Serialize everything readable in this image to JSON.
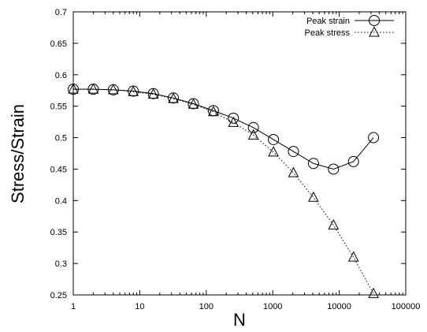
{
  "chart_data": {
    "type": "line",
    "xlabel": "N",
    "ylabel": "Stress/Strain",
    "xscale": "log",
    "xlim": [
      1,
      100000
    ],
    "ylim": [
      0.25,
      0.7
    ],
    "x_ticks": [
      1,
      10,
      100,
      1000,
      10000,
      100000
    ],
    "x_tick_labels": [
      "1",
      "10",
      "100",
      "1000",
      "10000",
      "100000"
    ],
    "y_ticks": [
      0.25,
      0.3,
      0.35,
      0.4,
      0.45,
      0.5,
      0.55,
      0.6,
      0.65,
      0.7
    ],
    "y_tick_labels": [
      "0.25",
      "0.3",
      "0.35",
      "0.4",
      "0.45",
      "0.5",
      "0.55",
      "0.6",
      "0.65",
      "0.7"
    ],
    "grid": false,
    "legend_position": "top-right",
    "series": [
      {
        "name": "Peak strain",
        "marker": "circle",
        "line": "solid",
        "color": "#000000",
        "x": [
          1,
          2,
          4,
          8,
          16,
          32,
          64,
          128,
          256,
          512,
          1024,
          2048,
          4096,
          8192,
          16384,
          32768
        ],
        "y": [
          0.577,
          0.577,
          0.576,
          0.574,
          0.57,
          0.563,
          0.554,
          0.543,
          0.531,
          0.516,
          0.497,
          0.478,
          0.459,
          0.45,
          0.462,
          0.5
        ]
      },
      {
        "name": "Peak stress",
        "marker": "triangle",
        "line": "dotted",
        "color": "#000000",
        "x": [
          1,
          2,
          4,
          8,
          16,
          32,
          64,
          128,
          256,
          512,
          1024,
          2048,
          4096,
          8192,
          16384,
          32768
        ],
        "y": [
          0.577,
          0.577,
          0.576,
          0.573,
          0.569,
          0.562,
          0.553,
          0.541,
          0.524,
          0.504,
          0.477,
          0.444,
          0.405,
          0.361,
          0.31,
          0.252
        ]
      }
    ]
  }
}
